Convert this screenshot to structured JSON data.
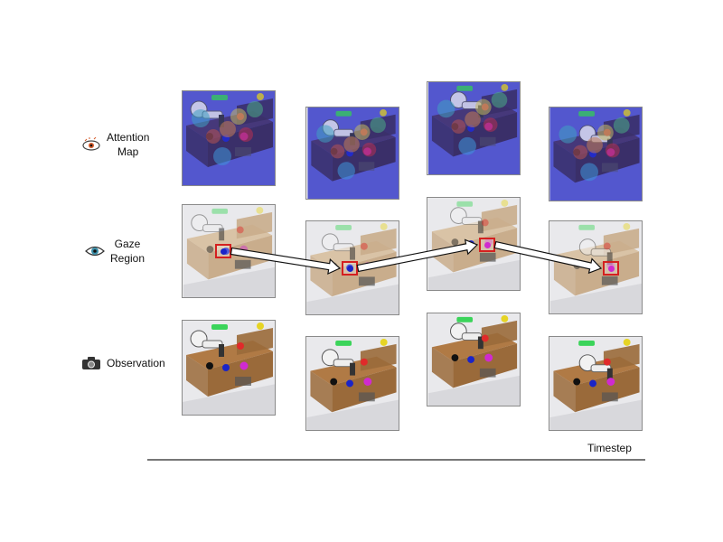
{
  "rows": {
    "attention": {
      "label_line1": "Attention",
      "label_line2": "Map",
      "icon": "brain-eye-icon"
    },
    "gaze": {
      "label_line1": "Gaze",
      "label_line2": "Region",
      "icon": "eye-icon"
    },
    "observation": {
      "label": "Observation",
      "icon": "camera-icon"
    }
  },
  "axis": {
    "label": "Timestep"
  },
  "timesteps": 4,
  "colors": {
    "highlight_box": "#d42020",
    "wood": "#9a6a3a",
    "attention_base": "#5a58c8",
    "arrow_fill": "#ffffff",
    "axis_line": "#777777"
  }
}
